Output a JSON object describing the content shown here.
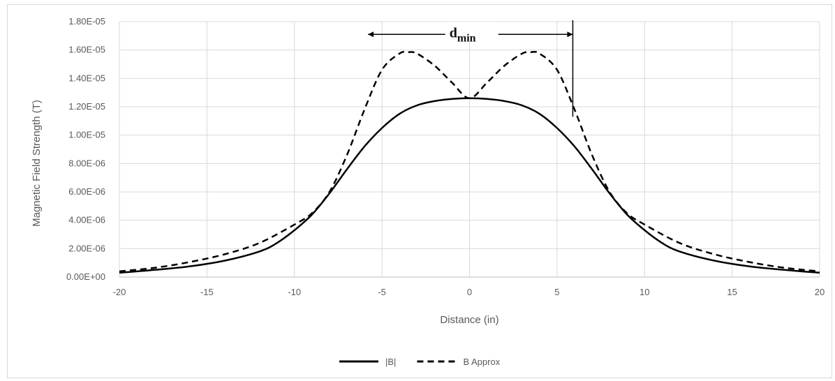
{
  "chart_data": {
    "type": "line",
    "title": "",
    "xlabel": "Distance (in)",
    "ylabel": "Magnetic Field Strength (T)",
    "xlim": [
      -20,
      20
    ],
    "ylim": [
      0,
      1.8e-05
    ],
    "x_ticks": [
      -20,
      -15,
      -10,
      -5,
      0,
      5,
      10,
      15,
      20
    ],
    "x_tick_labels": [
      "-20",
      "-15",
      "-10",
      "-5",
      "0",
      "5",
      "10",
      "15",
      "20"
    ],
    "y_ticks": [
      0,
      2e-06,
      4e-06,
      6e-06,
      8e-06,
      1e-05,
      1.2e-05,
      1.4e-05,
      1.6e-05,
      1.8e-05
    ],
    "y_tick_labels": [
      "0.00E+00",
      "2.00E-06",
      "4.00E-06",
      "6.00E-06",
      "8.00E-06",
      "1.00E-05",
      "1.20E-05",
      "1.40E-05",
      "1.60E-05",
      "1.80E-05"
    ],
    "grid": "vertical and horizontal",
    "legend_position": "bottom",
    "series": [
      {
        "name": "|B|",
        "style": "solid",
        "color": "#000000",
        "x": [
          -20,
          -18,
          -16,
          -14,
          -12,
          -11,
          -10,
          -9,
          -8,
          -7,
          -6,
          -5,
          -4,
          -3,
          -2,
          -1,
          0,
          1,
          2,
          3,
          4,
          5,
          6,
          7,
          8,
          9,
          10,
          11,
          12,
          14,
          16,
          18,
          20
        ],
        "y": [
          3e-07,
          5e-07,
          7.5e-07,
          1.15e-06,
          1.8e-06,
          2.4e-06,
          3.3e-06,
          4.4e-06,
          5.9e-06,
          7.6e-06,
          9.2e-06,
          1.05e-05,
          1.15e-05,
          1.21e-05,
          1.24e-05,
          1.255e-05,
          1.26e-05,
          1.255e-05,
          1.24e-05,
          1.21e-05,
          1.15e-05,
          1.05e-05,
          9.2e-06,
          7.6e-06,
          5.9e-06,
          4.4e-06,
          3.3e-06,
          2.4e-06,
          1.8e-06,
          1.15e-06,
          7.5e-07,
          5e-07,
          3e-07
        ]
      },
      {
        "name": "B Approx",
        "style": "dashed",
        "color": "#000000",
        "x": [
          -20,
          -18,
          -16,
          -14,
          -12,
          -10,
          -9,
          -8,
          -7,
          -6,
          -5,
          -4,
          -3.5,
          -3,
          -2,
          -1,
          0,
          1,
          2,
          3,
          3.5,
          4,
          5,
          6,
          7,
          8,
          9,
          10,
          12,
          14,
          16,
          18,
          20
        ],
        "y": [
          4e-07,
          6.5e-07,
          1.05e-06,
          1.6e-06,
          2.4e-06,
          3.7e-06,
          4.5e-06,
          6e-06,
          8.6e-06,
          1.18e-05,
          1.46e-05,
          1.575e-05,
          1.585e-05,
          1.575e-05,
          1.49e-05,
          1.37e-05,
          1.26e-05,
          1.37e-05,
          1.49e-05,
          1.575e-05,
          1.585e-05,
          1.575e-05,
          1.46e-05,
          1.18e-05,
          8.6e-06,
          6e-06,
          4.5e-06,
          3.7e-06,
          2.4e-06,
          1.6e-06,
          1.05e-06,
          6.5e-07,
          4e-07
        ]
      }
    ],
    "annotations": [
      {
        "text_main": "d",
        "text_sub": "min",
        "type": "double-arrow",
        "x_from": -5.8,
        "x_to": 5.9,
        "y": 1.71e-05
      },
      {
        "type": "vertical-line",
        "x": 5.9,
        "y_from": 1.13e-05,
        "y_to": 1.81e-05
      }
    ]
  }
}
